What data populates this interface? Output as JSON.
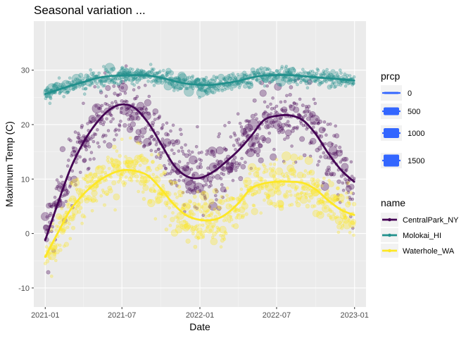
{
  "chart_data": {
    "type": "scatter",
    "title": "Seasonal variation ...",
    "xlabel": "Date",
    "ylabel": "Maximum Temp (C)",
    "xlim": [
      "2020-12-05",
      "2023-01-28"
    ],
    "ylim": [
      -13.5,
      39
    ],
    "x_ticks": [
      "2021-01",
      "2021-07",
      "2022-01",
      "2022-07",
      "2023-01"
    ],
    "x_tick_dates": [
      "2021-01-01",
      "2021-07-01",
      "2022-01-01",
      "2022-07-01",
      "2023-01-01"
    ],
    "y_ticks": [
      -10,
      0,
      10,
      20,
      30
    ],
    "grid": true,
    "series": [
      {
        "name": "CentralPark_NY",
        "color": "#440154",
        "smooth": [
          [
            "2021-01-01",
            -1.2
          ],
          [
            "2021-02-01",
            5.8
          ],
          [
            "2021-03-01",
            11.8
          ],
          [
            "2021-04-01",
            16.7
          ],
          [
            "2021-05-01",
            20.2
          ],
          [
            "2021-06-01",
            22.7
          ],
          [
            "2021-07-01",
            23.7
          ],
          [
            "2021-08-01",
            23.0
          ],
          [
            "2021-09-01",
            20.3
          ],
          [
            "2021-10-01",
            16.5
          ],
          [
            "2021-11-01",
            12.5
          ],
          [
            "2021-12-01",
            10.5
          ],
          [
            "2022-01-01",
            10.2
          ],
          [
            "2022-02-01",
            11.3
          ],
          [
            "2022-03-01",
            13.0
          ],
          [
            "2022-04-01",
            15.2
          ],
          [
            "2022-05-01",
            17.8
          ],
          [
            "2022-06-01",
            20.8
          ],
          [
            "2022-07-01",
            21.6
          ],
          [
            "2022-08-01",
            21.7
          ],
          [
            "2022-09-01",
            20.8
          ],
          [
            "2022-10-01",
            18.3
          ],
          [
            "2022-11-01",
            14.6
          ],
          [
            "2022-12-01",
            11.6
          ],
          [
            "2022-12-31",
            9.5
          ]
        ]
      },
      {
        "name": "Molokai_HI",
        "color": "#21908C",
        "smooth": [
          [
            "2021-01-01",
            25.6
          ],
          [
            "2021-02-01",
            26.4
          ],
          [
            "2021-03-01",
            27.1
          ],
          [
            "2021-04-01",
            27.8
          ],
          [
            "2021-05-01",
            28.5
          ],
          [
            "2021-06-01",
            28.9
          ],
          [
            "2021-07-01",
            29.0
          ],
          [
            "2021-08-01",
            29.1
          ],
          [
            "2021-09-01",
            29.0
          ],
          [
            "2021-10-01",
            28.6
          ],
          [
            "2021-11-01",
            28.0
          ],
          [
            "2021-12-01",
            27.5
          ],
          [
            "2022-01-01",
            27.3
          ],
          [
            "2022-02-01",
            27.3
          ],
          [
            "2022-03-01",
            27.6
          ],
          [
            "2022-04-01",
            28.0
          ],
          [
            "2022-05-01",
            28.6
          ],
          [
            "2022-06-01",
            29.0
          ],
          [
            "2022-07-01",
            29.1
          ],
          [
            "2022-08-01",
            29.1
          ],
          [
            "2022-09-01",
            28.9
          ],
          [
            "2022-10-01",
            28.7
          ],
          [
            "2022-11-01",
            28.5
          ],
          [
            "2022-12-01",
            28.3
          ],
          [
            "2022-12-31",
            28.1
          ]
        ]
      },
      {
        "name": "Waterhole_WA",
        "color": "#FDE725",
        "smooth": [
          [
            "2021-01-01",
            -4.3
          ],
          [
            "2021-02-01",
            0.3
          ],
          [
            "2021-03-01",
            4.3
          ],
          [
            "2021-04-01",
            7.2
          ],
          [
            "2021-05-01",
            9.3
          ],
          [
            "2021-06-01",
            10.8
          ],
          [
            "2021-07-01",
            11.6
          ],
          [
            "2021-08-01",
            11.5
          ],
          [
            "2021-09-01",
            10.6
          ],
          [
            "2021-10-01",
            8.2
          ],
          [
            "2021-11-01",
            5.3
          ],
          [
            "2021-12-01",
            3.3
          ],
          [
            "2022-01-01",
            2.5
          ],
          [
            "2022-02-01",
            2.5
          ],
          [
            "2022-03-01",
            3.4
          ],
          [
            "2022-04-01",
            5.5
          ],
          [
            "2022-05-01",
            8.2
          ],
          [
            "2022-06-01",
            9.2
          ],
          [
            "2022-07-01",
            9.5
          ],
          [
            "2022-08-01",
            9.5
          ],
          [
            "2022-09-01",
            9.3
          ],
          [
            "2022-10-01",
            8.1
          ],
          [
            "2022-11-01",
            6.0
          ],
          [
            "2022-12-01",
            4.3
          ],
          [
            "2022-12-31",
            3.4
          ]
        ]
      }
    ],
    "size_legend": {
      "title": "prcp",
      "color": "#3366FF",
      "values": [
        "0",
        "500",
        "1000",
        "1500"
      ]
    },
    "color_legend": {
      "title": "name",
      "entries": [
        "CentralPark_NY",
        "Molokai_HI",
        "Waterhole_WA"
      ]
    },
    "legend_placement": "right"
  }
}
